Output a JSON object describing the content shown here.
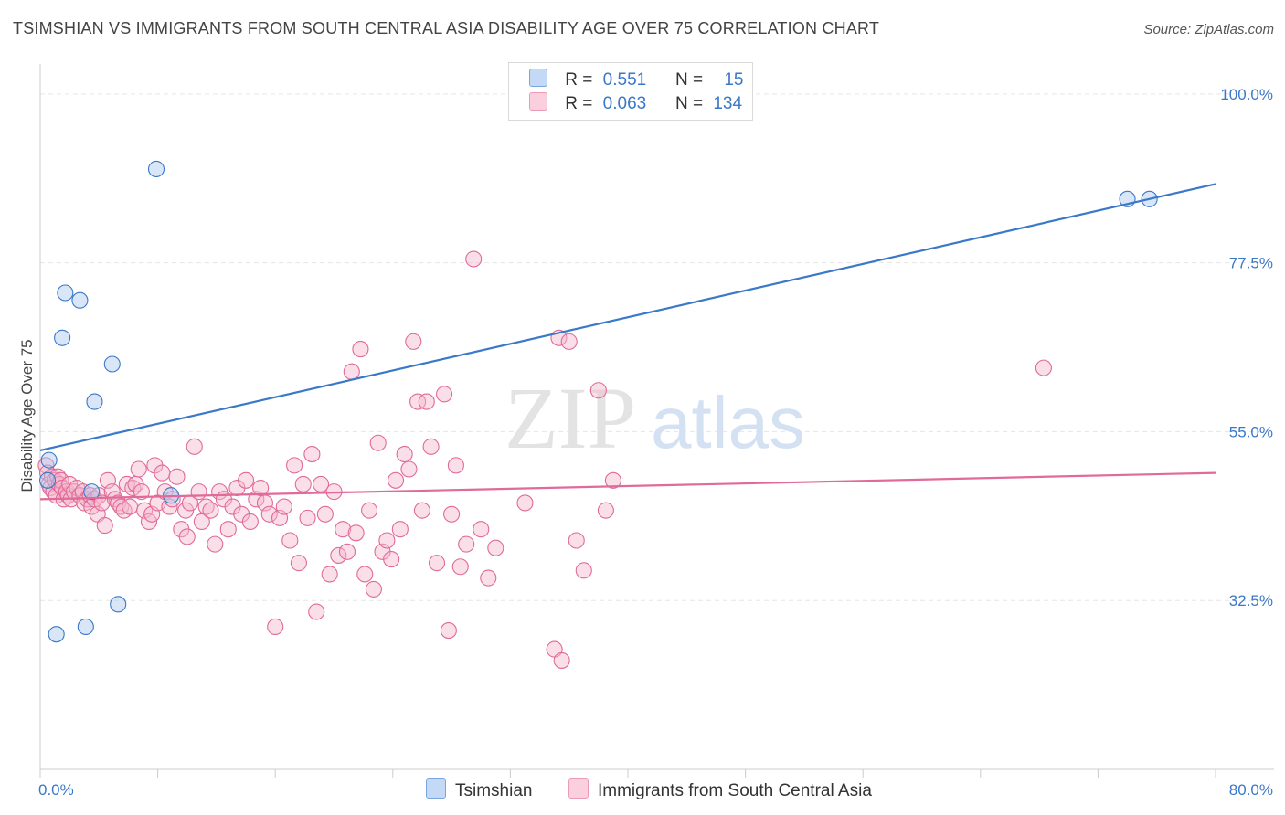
{
  "title": "TSIMSHIAN VS IMMIGRANTS FROM SOUTH CENTRAL ASIA DISABILITY AGE OVER 75 CORRELATION CHART",
  "source": "Source: ZipAtlas.com",
  "watermark": {
    "zip": "ZIP",
    "atlas": "atlas"
  },
  "colors": {
    "blue": "#3a78c9",
    "blue_fill": "#aac8ef",
    "pink": "#e06a98",
    "pink_fill": "#f5b8cc",
    "grid": "#e6e6e6",
    "axis": "#cccccc",
    "tick_label": "#3a78c9"
  },
  "legend": {
    "series1": {
      "r_label": "R =",
      "r_value": "0.551",
      "n_label": "N =",
      "n_value": "15"
    },
    "series2": {
      "r_label": "R =",
      "r_value": "0.063",
      "n_label": "N =",
      "n_value": "134"
    }
  },
  "chart_data": {
    "type": "scatter",
    "title": "TSIMSHIAN VS IMMIGRANTS FROM SOUTH CENTRAL ASIA DISABILITY AGE OVER 75 CORRELATION CHART",
    "xlabel": "",
    "ylabel": "Disability Age Over 75",
    "xlim": [
      0,
      80
    ],
    "ylim": [
      10,
      104
    ],
    "x_tick_labels": [
      "0.0%",
      "80.0%"
    ],
    "y_ticks": [
      32.5,
      55.0,
      77.5,
      100.0
    ],
    "y_tick_labels": [
      "32.5%",
      "55.0%",
      "77.5%",
      "100.0%"
    ],
    "grid": true,
    "legend_position": "top-center",
    "series": [
      {
        "name": "Tsimshian",
        "color": "#3a78c9",
        "points": [
          [
            0.6,
            51.2
          ],
          [
            0.5,
            48.5
          ],
          [
            1.1,
            28.0
          ],
          [
            1.5,
            67.5
          ],
          [
            1.7,
            73.5
          ],
          [
            2.7,
            72.5
          ],
          [
            3.1,
            29.0
          ],
          [
            3.5,
            47.0
          ],
          [
            3.7,
            59.0
          ],
          [
            4.9,
            64.0
          ],
          [
            5.3,
            32.0
          ],
          [
            7.9,
            90.0
          ],
          [
            8.9,
            46.5
          ],
          [
            74.0,
            86.0
          ],
          [
            75.5,
            86.0
          ]
        ],
        "trend": {
          "x": [
            0,
            80
          ],
          "y": [
            52.5,
            88.0
          ]
        }
      },
      {
        "name": "Immigrants from South Central Asia",
        "color": "#e06a98",
        "points": [
          [
            0.4,
            50.5
          ],
          [
            0.5,
            49.5
          ],
          [
            0.6,
            48.0
          ],
          [
            0.7,
            47.5
          ],
          [
            0.8,
            49.0
          ],
          [
            0.9,
            47.0
          ],
          [
            1.0,
            48.5
          ],
          [
            1.1,
            46.5
          ],
          [
            1.2,
            49.0
          ],
          [
            1.3,
            48.0
          ],
          [
            1.4,
            48.5
          ],
          [
            1.5,
            47.5
          ],
          [
            1.6,
            46.0
          ],
          [
            1.8,
            47.0
          ],
          [
            1.9,
            46.5
          ],
          [
            2.0,
            48.0
          ],
          [
            2.1,
            46.0
          ],
          [
            2.3,
            47.0
          ],
          [
            2.5,
            47.5
          ],
          [
            2.7,
            46.5
          ],
          [
            2.9,
            47.0
          ],
          [
            3.0,
            45.5
          ],
          [
            3.2,
            46.0
          ],
          [
            3.4,
            46.5
          ],
          [
            3.5,
            45.0
          ],
          [
            3.7,
            46.0
          ],
          [
            3.9,
            44.0
          ],
          [
            4.0,
            46.5
          ],
          [
            4.2,
            45.5
          ],
          [
            4.4,
            42.5
          ],
          [
            4.6,
            48.5
          ],
          [
            4.9,
            47.0
          ],
          [
            5.1,
            46.0
          ],
          [
            5.3,
            45.5
          ],
          [
            5.5,
            45.0
          ],
          [
            5.7,
            44.5
          ],
          [
            5.9,
            48.0
          ],
          [
            6.1,
            45.0
          ],
          [
            6.3,
            47.5
          ],
          [
            6.5,
            48.0
          ],
          [
            6.7,
            50.0
          ],
          [
            6.9,
            47.0
          ],
          [
            7.1,
            44.5
          ],
          [
            7.4,
            43.0
          ],
          [
            7.6,
            44.0
          ],
          [
            7.8,
            50.5
          ],
          [
            8.0,
            45.5
          ],
          [
            8.3,
            49.5
          ],
          [
            8.5,
            47.0
          ],
          [
            8.8,
            45.0
          ],
          [
            9.0,
            46.0
          ],
          [
            9.3,
            49.0
          ],
          [
            9.6,
            42.0
          ],
          [
            9.9,
            44.5
          ],
          [
            10.0,
            41.0
          ],
          [
            10.2,
            45.5
          ],
          [
            10.5,
            53.0
          ],
          [
            10.8,
            47.0
          ],
          [
            11.0,
            43.0
          ],
          [
            11.3,
            45.0
          ],
          [
            11.6,
            44.5
          ],
          [
            11.9,
            40.0
          ],
          [
            12.2,
            47.0
          ],
          [
            12.5,
            46.0
          ],
          [
            12.8,
            42.0
          ],
          [
            13.1,
            45.0
          ],
          [
            13.4,
            47.5
          ],
          [
            13.7,
            44.0
          ],
          [
            14.0,
            48.5
          ],
          [
            14.3,
            43.0
          ],
          [
            14.7,
            46.0
          ],
          [
            15.0,
            47.5
          ],
          [
            15.3,
            45.5
          ],
          [
            15.6,
            44.0
          ],
          [
            16.0,
            29.0
          ],
          [
            16.3,
            43.5
          ],
          [
            16.6,
            45.0
          ],
          [
            17.0,
            40.5
          ],
          [
            17.3,
            50.5
          ],
          [
            17.6,
            37.5
          ],
          [
            17.9,
            48.0
          ],
          [
            18.2,
            43.5
          ],
          [
            18.5,
            52.0
          ],
          [
            18.8,
            31.0
          ],
          [
            19.1,
            48.0
          ],
          [
            19.4,
            44.0
          ],
          [
            19.7,
            36.0
          ],
          [
            20.0,
            47.0
          ],
          [
            20.3,
            38.5
          ],
          [
            20.6,
            42.0
          ],
          [
            20.9,
            39.0
          ],
          [
            21.2,
            63.0
          ],
          [
            21.5,
            41.5
          ],
          [
            21.8,
            66.0
          ],
          [
            22.1,
            36.0
          ],
          [
            22.4,
            44.5
          ],
          [
            22.7,
            34.0
          ],
          [
            23.0,
            53.5
          ],
          [
            23.3,
            39.0
          ],
          [
            23.6,
            40.5
          ],
          [
            23.9,
            38.0
          ],
          [
            24.2,
            48.5
          ],
          [
            24.5,
            42.0
          ],
          [
            24.8,
            52.0
          ],
          [
            25.1,
            50.0
          ],
          [
            25.4,
            67.0
          ],
          [
            25.7,
            59.0
          ],
          [
            26.0,
            44.5
          ],
          [
            26.3,
            59.0
          ],
          [
            26.6,
            53.0
          ],
          [
            27.0,
            37.5
          ],
          [
            27.5,
            60.0
          ],
          [
            27.8,
            28.5
          ],
          [
            28.0,
            44.0
          ],
          [
            28.3,
            50.5
          ],
          [
            28.6,
            37.0
          ],
          [
            29.0,
            40.0
          ],
          [
            29.5,
            78.0
          ],
          [
            30.0,
            42.0
          ],
          [
            30.5,
            35.5
          ],
          [
            31.0,
            39.5
          ],
          [
            33.0,
            45.5
          ],
          [
            35.0,
            26.0
          ],
          [
            35.3,
            67.5
          ],
          [
            35.5,
            24.5
          ],
          [
            36.0,
            67.0
          ],
          [
            36.5,
            40.5
          ],
          [
            37.0,
            36.5
          ],
          [
            38.0,
            60.5
          ],
          [
            38.5,
            44.5
          ],
          [
            39.0,
            48.5
          ],
          [
            68.3,
            63.5
          ]
        ],
        "trend": {
          "x": [
            0,
            80
          ],
          "y": [
            46.0,
            49.5
          ]
        }
      }
    ]
  },
  "bottom_legend": {
    "series1": "Tsimshian",
    "series2": "Immigrants from South Central Asia"
  }
}
